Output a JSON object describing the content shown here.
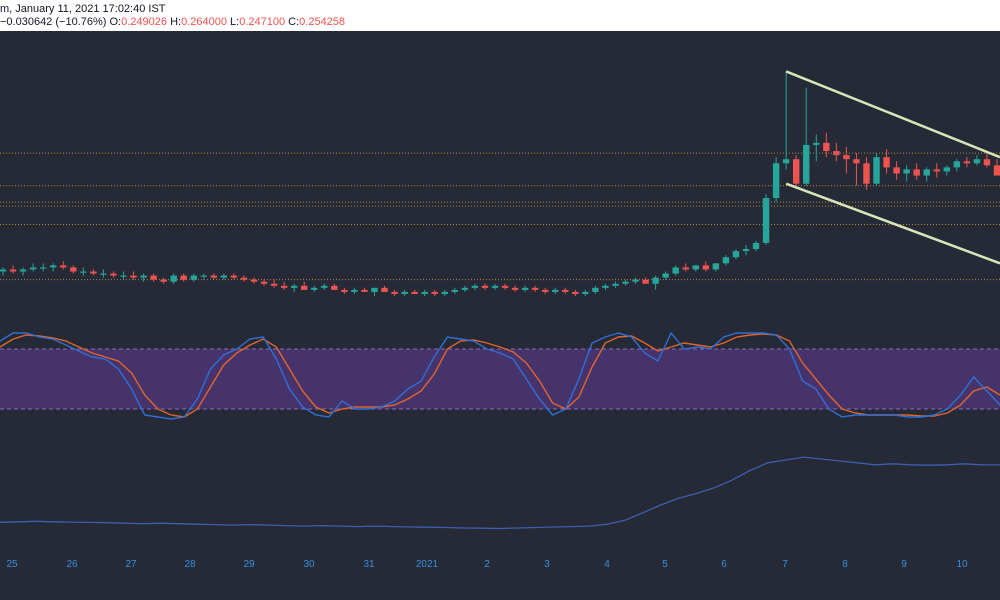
{
  "header": {
    "title_fragment": "m, January 11, 2021 17:02:40 IST",
    "change": "−0.030642 (−10.76%)",
    "o_label": "O:",
    "o_value": "0.249026",
    "h_label": "H:",
    "h_value": "0.264000",
    "l_label": "L:",
    "l_value": "0.247100",
    "c_label": "C:",
    "c_value": "0.254258"
  },
  "colors": {
    "background": "#252a36",
    "up": "#26a69a",
    "down": "#ef5350",
    "channel": "#d8e6b8",
    "stoch_k": "#2f6fd6",
    "stoch_d": "#e2652a",
    "stoch_band": "#4d3575",
    "bottom_line": "#3c5fb0",
    "level_line": "#b58a3c"
  },
  "chart_data": {
    "type": "candlestick",
    "x_tick_labels": [
      "25",
      "26",
      "27",
      "28",
      "29",
      "30",
      "31",
      "2021",
      "2",
      "3",
      "4",
      "5",
      "6",
      "7",
      "8",
      "9",
      "10"
    ],
    "horizontal_levels": [
      0.26,
      0.244,
      0.236,
      0.234,
      0.225,
      0.198
    ],
    "channel": {
      "upper": [
        0.3,
        0.258
      ],
      "lower": [
        0.245,
        0.206
      ]
    },
    "price_range": [
      0.19,
      0.31
    ],
    "candles": [
      [
        0.202,
        0.204,
        0.2,
        0.203
      ],
      [
        0.203,
        0.205,
        0.201,
        0.202
      ],
      [
        0.202,
        0.204,
        0.2,
        0.203
      ],
      [
        0.203,
        0.206,
        0.202,
        0.204
      ],
      [
        0.204,
        0.206,
        0.202,
        0.204
      ],
      [
        0.204,
        0.206,
        0.202,
        0.205
      ],
      [
        0.205,
        0.207,
        0.203,
        0.204
      ],
      [
        0.204,
        0.205,
        0.201,
        0.202
      ],
      [
        0.202,
        0.204,
        0.2,
        0.202
      ],
      [
        0.202,
        0.203,
        0.2,
        0.201
      ],
      [
        0.201,
        0.203,
        0.199,
        0.201
      ],
      [
        0.201,
        0.202,
        0.199,
        0.2
      ],
      [
        0.2,
        0.202,
        0.198,
        0.2
      ],
      [
        0.2,
        0.202,
        0.198,
        0.199
      ],
      [
        0.199,
        0.201,
        0.197,
        0.2
      ],
      [
        0.2,
        0.201,
        0.197,
        0.198
      ],
      [
        0.198,
        0.199,
        0.196,
        0.197
      ],
      [
        0.197,
        0.201,
        0.196,
        0.2
      ],
      [
        0.2,
        0.201,
        0.197,
        0.198
      ],
      [
        0.198,
        0.201,
        0.197,
        0.2
      ],
      [
        0.2,
        0.201,
        0.198,
        0.2
      ],
      [
        0.2,
        0.201,
        0.198,
        0.199
      ],
      [
        0.199,
        0.201,
        0.198,
        0.2
      ],
      [
        0.2,
        0.201,
        0.198,
        0.199
      ],
      [
        0.199,
        0.2,
        0.197,
        0.198
      ],
      [
        0.198,
        0.199,
        0.196,
        0.197
      ],
      [
        0.197,
        0.198,
        0.195,
        0.196
      ],
      [
        0.196,
        0.198,
        0.194,
        0.195
      ],
      [
        0.195,
        0.197,
        0.193,
        0.194
      ],
      [
        0.194,
        0.196,
        0.192,
        0.195
      ],
      [
        0.195,
        0.197,
        0.193,
        0.193
      ],
      [
        0.193,
        0.195,
        0.192,
        0.194
      ],
      [
        0.194,
        0.196,
        0.193,
        0.195
      ],
      [
        0.195,
        0.196,
        0.193,
        0.193
      ],
      [
        0.193,
        0.194,
        0.191,
        0.192
      ],
      [
        0.192,
        0.194,
        0.191,
        0.193
      ],
      [
        0.193,
        0.194,
        0.192,
        0.192
      ],
      [
        0.192,
        0.194,
        0.19,
        0.194
      ],
      [
        0.194,
        0.195,
        0.192,
        0.192
      ],
      [
        0.192,
        0.193,
        0.19,
        0.191
      ],
      [
        0.191,
        0.193,
        0.19,
        0.192
      ],
      [
        0.192,
        0.193,
        0.191,
        0.191
      ],
      [
        0.191,
        0.193,
        0.19,
        0.192
      ],
      [
        0.192,
        0.193,
        0.19,
        0.191
      ],
      [
        0.191,
        0.193,
        0.19,
        0.192
      ],
      [
        0.192,
        0.194,
        0.191,
        0.193
      ],
      [
        0.193,
        0.195,
        0.192,
        0.194
      ],
      [
        0.194,
        0.196,
        0.193,
        0.195
      ],
      [
        0.195,
        0.196,
        0.193,
        0.194
      ],
      [
        0.194,
        0.196,
        0.193,
        0.195
      ],
      [
        0.195,
        0.196,
        0.193,
        0.194
      ],
      [
        0.194,
        0.195,
        0.192,
        0.193
      ],
      [
        0.193,
        0.195,
        0.192,
        0.194
      ],
      [
        0.194,
        0.195,
        0.192,
        0.193
      ],
      [
        0.193,
        0.194,
        0.191,
        0.192
      ],
      [
        0.192,
        0.194,
        0.191,
        0.193
      ],
      [
        0.193,
        0.194,
        0.191,
        0.192
      ],
      [
        0.192,
        0.193,
        0.19,
        0.191
      ],
      [
        0.191,
        0.193,
        0.19,
        0.192
      ],
      [
        0.192,
        0.195,
        0.191,
        0.194
      ],
      [
        0.194,
        0.196,
        0.193,
        0.195
      ],
      [
        0.195,
        0.197,
        0.194,
        0.196
      ],
      [
        0.196,
        0.198,
        0.195,
        0.197
      ],
      [
        0.197,
        0.199,
        0.196,
        0.198
      ],
      [
        0.198,
        0.199,
        0.196,
        0.196
      ],
      [
        0.196,
        0.2,
        0.193,
        0.199
      ],
      [
        0.199,
        0.202,
        0.198,
        0.201
      ],
      [
        0.201,
        0.205,
        0.2,
        0.204
      ],
      [
        0.204,
        0.206,
        0.202,
        0.203
      ],
      [
        0.203,
        0.205,
        0.202,
        0.205
      ],
      [
        0.205,
        0.207,
        0.202,
        0.203
      ],
      [
        0.203,
        0.206,
        0.202,
        0.206
      ],
      [
        0.206,
        0.21,
        0.205,
        0.209
      ],
      [
        0.209,
        0.213,
        0.208,
        0.212
      ],
      [
        0.212,
        0.215,
        0.21,
        0.213
      ],
      [
        0.213,
        0.217,
        0.212,
        0.216
      ],
      [
        0.216,
        0.24,
        0.215,
        0.238
      ],
      [
        0.238,
        0.258,
        0.236,
        0.255
      ],
      [
        0.255,
        0.3,
        0.252,
        0.257
      ],
      [
        0.257,
        0.259,
        0.244,
        0.245
      ],
      [
        0.245,
        0.292,
        0.244,
        0.264
      ],
      [
        0.264,
        0.269,
        0.256,
        0.265
      ],
      [
        0.265,
        0.27,
        0.258,
        0.261
      ],
      [
        0.261,
        0.265,
        0.256,
        0.259
      ],
      [
        0.259,
        0.263,
        0.25,
        0.257
      ],
      [
        0.257,
        0.26,
        0.244,
        0.255
      ],
      [
        0.255,
        0.258,
        0.242,
        0.245
      ],
      [
        0.245,
        0.26,
        0.244,
        0.258
      ],
      [
        0.258,
        0.262,
        0.25,
        0.253
      ],
      [
        0.253,
        0.256,
        0.247,
        0.25
      ],
      [
        0.25,
        0.254,
        0.246,
        0.252
      ],
      [
        0.252,
        0.255,
        0.247,
        0.249
      ],
      [
        0.249,
        0.253,
        0.246,
        0.252
      ],
      [
        0.252,
        0.255,
        0.248,
        0.251
      ],
      [
        0.251,
        0.254,
        0.249,
        0.253
      ],
      [
        0.253,
        0.257,
        0.251,
        0.256
      ],
      [
        0.256,
        0.258,
        0.253,
        0.255
      ],
      [
        0.255,
        0.259,
        0.254,
        0.257
      ],
      [
        0.257,
        0.26,
        0.253,
        0.254
      ],
      [
        0.254,
        0.257,
        0.25,
        0.249
      ]
    ],
    "stochastic": {
      "band": [
        20,
        80
      ],
      "k": [
        88,
        96,
        96,
        92,
        90,
        84,
        78,
        72,
        70,
        60,
        40,
        14,
        12,
        10,
        12,
        30,
        60,
        74,
        80,
        90,
        92,
        70,
        40,
        22,
        14,
        12,
        28,
        20,
        20,
        22,
        28,
        40,
        48,
        72,
        92,
        90,
        88,
        80,
        76,
        70,
        50,
        30,
        14,
        20,
        50,
        86,
        92,
        96,
        92,
        76,
        68,
        96,
        80,
        82,
        80,
        92,
        96,
        96,
        96,
        94,
        80,
        48,
        40,
        20,
        12,
        14,
        14,
        14,
        14,
        12,
        12,
        14,
        20,
        34,
        52,
        38,
        24
      ],
      "d": [
        82,
        90,
        94,
        93,
        91,
        88,
        82,
        76,
        72,
        68,
        56,
        34,
        20,
        14,
        12,
        20,
        42,
        64,
        76,
        84,
        90,
        82,
        60,
        38,
        22,
        16,
        20,
        22,
        22,
        22,
        24,
        30,
        38,
        55,
        80,
        88,
        89,
        86,
        82,
        77,
        66,
        48,
        26,
        20,
        32,
        62,
        86,
        92,
        93,
        86,
        78,
        82,
        86,
        84,
        82,
        86,
        92,
        94,
        95,
        94,
        88,
        66,
        50,
        34,
        20,
        16,
        14,
        14,
        14,
        14,
        13,
        13,
        16,
        24,
        38,
        42,
        34
      ]
    },
    "bottom_indicator": [
      30,
      30.5,
      31,
      30.5,
      30.2,
      29.8,
      29.5,
      29,
      28.5,
      29,
      28.5,
      28,
      27.5,
      27,
      27.5,
      27,
      26.5,
      26,
      26.5,
      26,
      25.5,
      26,
      25.5,
      25,
      24.8,
      24.5,
      24,
      23.8,
      23.5,
      24,
      24.5,
      25,
      25.5,
      26,
      28,
      32,
      40,
      48,
      55,
      60,
      66,
      74,
      84,
      92,
      95,
      98,
      96,
      94,
      92,
      90,
      91,
      90,
      89.5,
      90,
      91,
      90,
      89.8
    ],
    "bottom_range": [
      0,
      120
    ]
  }
}
